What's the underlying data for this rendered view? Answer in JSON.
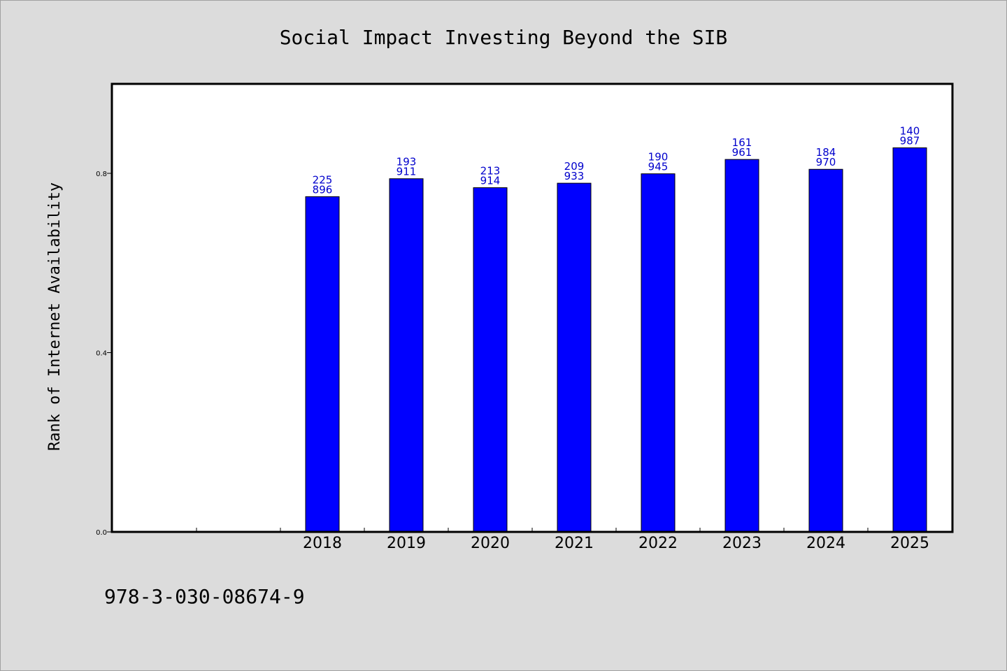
{
  "chart_data": {
    "type": "bar",
    "title": "Social Impact Investing Beyond the SIB",
    "xlabel": "",
    "ylabel": "Rank of Internet Availability",
    "categories": [
      "",
      "",
      "2018",
      "2019",
      "2020",
      "2021",
      "2022",
      "2023",
      "2024",
      "2025"
    ],
    "series": [
      {
        "values": [
          null,
          null,
          0.748,
          0.788,
          0.768,
          0.778,
          0.799,
          0.831,
          0.809,
          0.857
        ],
        "labels_top": [
          "",
          "",
          "225",
          "193",
          "213",
          "209",
          "190",
          "161",
          "184",
          "140"
        ],
        "labels_bottom": [
          "",
          "",
          "896",
          "911",
          "914",
          "933",
          "945",
          "961",
          "970",
          "987"
        ]
      }
    ],
    "ylim": [
      0,
      1.0
    ],
    "yticks": [
      0.0,
      0.4,
      0.8
    ],
    "ytick_labels": [
      "0.0",
      "0.4",
      "0.8"
    ],
    "grid": false,
    "colors": {
      "bar": "#0000ff",
      "bar_edge": "#000000",
      "bar_label": "#0000cc",
      "background": "#dcdcdc",
      "plot_area": "#ffffff"
    }
  },
  "footer": {
    "isbn": "978-3-030-08674-9"
  }
}
